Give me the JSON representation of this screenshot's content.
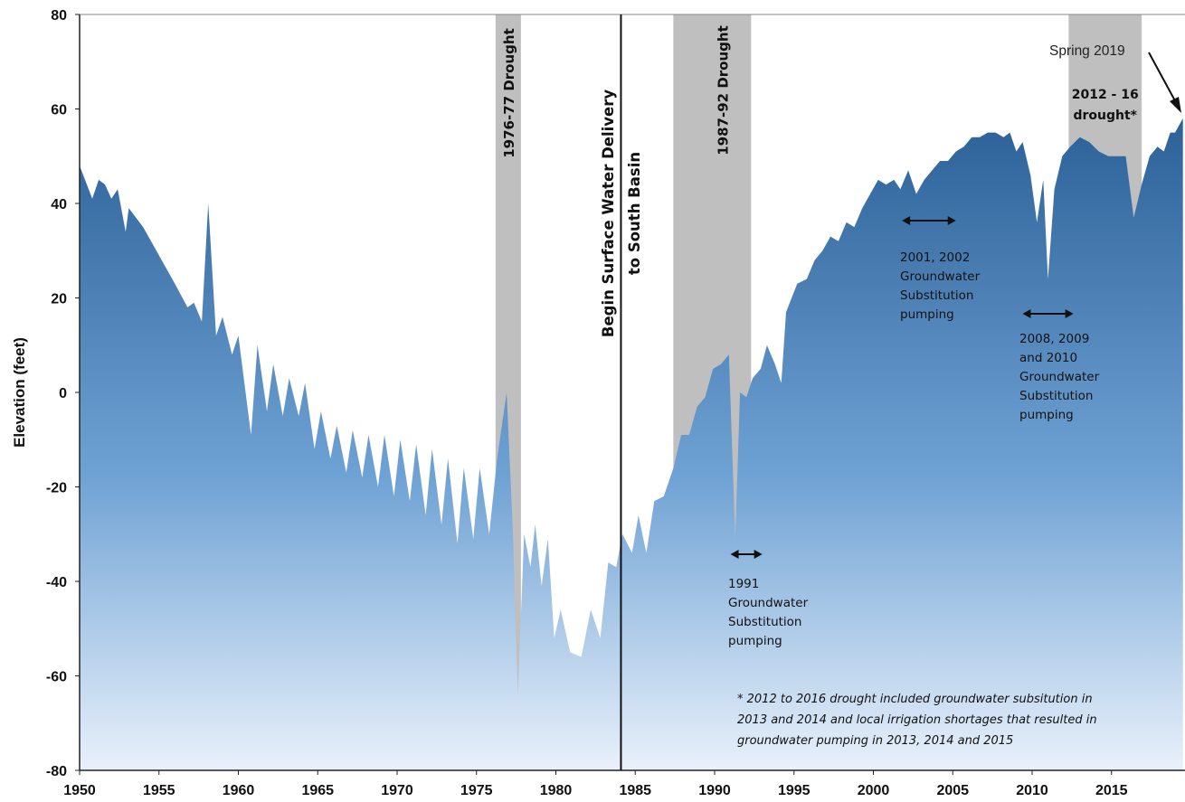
{
  "chart_data": {
    "type": "area",
    "title": "",
    "xlabel": "",
    "ylabel": "Elevation  (feet)",
    "xlim": [
      1950,
      2019
    ],
    "ylim": [
      -80,
      80
    ],
    "x_ticks": [
      "1950",
      "1955",
      "1960",
      "1965",
      "1970",
      "1975",
      "1980",
      "1985",
      "1990",
      "1995",
      "2000",
      "2005",
      "2010",
      "2015"
    ],
    "y_ticks": [
      "80",
      "60",
      "40",
      "20",
      "0",
      "-20",
      "-40",
      "-60",
      "-80"
    ],
    "grid": false,
    "legend": "none",
    "series": [
      {
        "values": [
          {
            "x": 1950.0,
            "y": 48
          },
          {
            "x": 1950.8,
            "y": 41
          },
          {
            "x": 1951.2,
            "y": 45
          },
          {
            "x": 1951.6,
            "y": 44
          },
          {
            "x": 1952.0,
            "y": 41
          },
          {
            "x": 1952.4,
            "y": 43
          },
          {
            "x": 1952.9,
            "y": 34
          },
          {
            "x": 1953.1,
            "y": 39
          },
          {
            "x": 1954.0,
            "y": 35
          },
          {
            "x": 1955.0,
            "y": 29
          },
          {
            "x": 1956.0,
            "y": 23
          },
          {
            "x": 1956.8,
            "y": 18
          },
          {
            "x": 1957.2,
            "y": 19
          },
          {
            "x": 1957.7,
            "y": 15
          },
          {
            "x": 1958.1,
            "y": 40
          },
          {
            "x": 1958.6,
            "y": 12
          },
          {
            "x": 1959.0,
            "y": 16
          },
          {
            "x": 1959.6,
            "y": 8
          },
          {
            "x": 1960.0,
            "y": 12
          },
          {
            "x": 1960.8,
            "y": -9
          },
          {
            "x": 1961.2,
            "y": 10
          },
          {
            "x": 1961.8,
            "y": -4
          },
          {
            "x": 1962.2,
            "y": 6
          },
          {
            "x": 1962.8,
            "y": -5
          },
          {
            "x": 1963.2,
            "y": 3
          },
          {
            "x": 1963.8,
            "y": -5
          },
          {
            "x": 1964.2,
            "y": 2
          },
          {
            "x": 1964.8,
            "y": -12
          },
          {
            "x": 1965.2,
            "y": -4
          },
          {
            "x": 1965.8,
            "y": -14
          },
          {
            "x": 1966.2,
            "y": -7
          },
          {
            "x": 1966.8,
            "y": -17
          },
          {
            "x": 1967.2,
            "y": -8
          },
          {
            "x": 1967.8,
            "y": -18
          },
          {
            "x": 1968.2,
            "y": -9
          },
          {
            "x": 1968.8,
            "y": -20
          },
          {
            "x": 1969.2,
            "y": -9
          },
          {
            "x": 1969.8,
            "y": -22
          },
          {
            "x": 1970.2,
            "y": -10
          },
          {
            "x": 1970.8,
            "y": -23
          },
          {
            "x": 1971.2,
            "y": -11
          },
          {
            "x": 1971.8,
            "y": -26
          },
          {
            "x": 1972.2,
            "y": -12
          },
          {
            "x": 1972.8,
            "y": -28
          },
          {
            "x": 1973.2,
            "y": -14
          },
          {
            "x": 1973.8,
            "y": -32
          },
          {
            "x": 1974.2,
            "y": -16
          },
          {
            "x": 1974.8,
            "y": -31
          },
          {
            "x": 1975.2,
            "y": -16
          },
          {
            "x": 1975.8,
            "y": -30
          },
          {
            "x": 1976.3,
            "y": -14
          },
          {
            "x": 1976.9,
            "y": 0
          },
          {
            "x": 1977.3,
            "y": -30
          },
          {
            "x": 1977.6,
            "y": -64
          },
          {
            "x": 1978.0,
            "y": -30
          },
          {
            "x": 1978.4,
            "y": -37
          },
          {
            "x": 1978.7,
            "y": -28
          },
          {
            "x": 1979.1,
            "y": -41
          },
          {
            "x": 1979.5,
            "y": -31
          },
          {
            "x": 1979.9,
            "y": -52
          },
          {
            "x": 1980.3,
            "y": -46
          },
          {
            "x": 1980.9,
            "y": -55
          },
          {
            "x": 1981.6,
            "y": -56
          },
          {
            "x": 1982.2,
            "y": -46
          },
          {
            "x": 1982.8,
            "y": -52
          },
          {
            "x": 1983.3,
            "y": -36
          },
          {
            "x": 1983.8,
            "y": -37
          },
          {
            "x": 1984.2,
            "y": -30
          },
          {
            "x": 1984.8,
            "y": -34
          },
          {
            "x": 1985.2,
            "y": -26
          },
          {
            "x": 1985.7,
            "y": -34
          },
          {
            "x": 1986.2,
            "y": -23
          },
          {
            "x": 1986.8,
            "y": -22
          },
          {
            "x": 1987.4,
            "y": -16
          },
          {
            "x": 1987.9,
            "y": -9
          },
          {
            "x": 1988.4,
            "y": -9
          },
          {
            "x": 1988.9,
            "y": -3
          },
          {
            "x": 1989.4,
            "y": -1
          },
          {
            "x": 1989.9,
            "y": 5
          },
          {
            "x": 1990.4,
            "y": 6
          },
          {
            "x": 1990.9,
            "y": 8
          },
          {
            "x": 1991.3,
            "y": -31
          },
          {
            "x": 1991.6,
            "y": 0
          },
          {
            "x": 1992.0,
            "y": -1
          },
          {
            "x": 1992.4,
            "y": 3
          },
          {
            "x": 1992.9,
            "y": 5
          },
          {
            "x": 1993.3,
            "y": 10
          },
          {
            "x": 1993.8,
            "y": 6
          },
          {
            "x": 1994.2,
            "y": 2
          },
          {
            "x": 1994.5,
            "y": 17
          },
          {
            "x": 1995.2,
            "y": 23
          },
          {
            "x": 1995.8,
            "y": 24
          },
          {
            "x": 1996.3,
            "y": 28
          },
          {
            "x": 1996.8,
            "y": 30
          },
          {
            "x": 1997.3,
            "y": 33
          },
          {
            "x": 1997.8,
            "y": 32
          },
          {
            "x": 1998.3,
            "y": 36
          },
          {
            "x": 1998.8,
            "y": 35
          },
          {
            "x": 1999.3,
            "y": 39
          },
          {
            "x": 1999.8,
            "y": 42
          },
          {
            "x": 2000.3,
            "y": 45
          },
          {
            "x": 2000.8,
            "y": 44
          },
          {
            "x": 2001.3,
            "y": 45
          },
          {
            "x": 2001.7,
            "y": 43
          },
          {
            "x": 2002.2,
            "y": 47
          },
          {
            "x": 2002.7,
            "y": 42
          },
          {
            "x": 2003.2,
            "y": 45
          },
          {
            "x": 2003.7,
            "y": 47
          },
          {
            "x": 2004.2,
            "y": 49
          },
          {
            "x": 2004.7,
            "y": 49
          },
          {
            "x": 2005.2,
            "y": 51
          },
          {
            "x": 2005.7,
            "y": 52
          },
          {
            "x": 2006.2,
            "y": 54
          },
          {
            "x": 2006.7,
            "y": 54
          },
          {
            "x": 2007.2,
            "y": 55
          },
          {
            "x": 2007.7,
            "y": 55
          },
          {
            "x": 2008.2,
            "y": 54
          },
          {
            "x": 2008.6,
            "y": 55
          },
          {
            "x": 2009.0,
            "y": 51
          },
          {
            "x": 2009.4,
            "y": 53
          },
          {
            "x": 2009.9,
            "y": 46
          },
          {
            "x": 2010.3,
            "y": 36
          },
          {
            "x": 2010.7,
            "y": 45
          },
          {
            "x": 2011.0,
            "y": 24
          },
          {
            "x": 2011.4,
            "y": 43
          },
          {
            "x": 2011.9,
            "y": 50
          },
          {
            "x": 2012.4,
            "y": 52
          },
          {
            "x": 2013.0,
            "y": 54
          },
          {
            "x": 2013.6,
            "y": 53
          },
          {
            "x": 2014.2,
            "y": 51
          },
          {
            "x": 2014.8,
            "y": 50
          },
          {
            "x": 2015.4,
            "y": 50
          },
          {
            "x": 2015.9,
            "y": 50
          },
          {
            "x": 2016.4,
            "y": 37
          },
          {
            "x": 2016.9,
            "y": 44
          },
          {
            "x": 2017.4,
            "y": 50
          },
          {
            "x": 2017.9,
            "y": 52
          },
          {
            "x": 2018.3,
            "y": 51
          },
          {
            "x": 2018.7,
            "y": 55
          },
          {
            "x": 2019.0,
            "y": 55
          },
          {
            "x": 2019.5,
            "y": 58
          }
        ]
      }
    ],
    "bands": [
      {
        "label": "1976-77 Drought",
        "x0": 1976.2,
        "x1": 1977.8
      },
      {
        "label": "1987-92 Drought",
        "x0": 1987.4,
        "x1": 1992.3
      },
      {
        "label": "2012 - 16 drought*",
        "x0": 2012.3,
        "x1": 2016.9
      }
    ],
    "vertical_line": {
      "x": 1984.1,
      "label_line1": "Begin Surface Water Delivery",
      "label_line2": "to South Basin"
    },
    "annotations": [
      {
        "lines": [
          "1991",
          "Groundwater",
          "Substitution",
          "pumping"
        ],
        "arrow_x": [
          1991.0,
          1993.0
        ]
      },
      {
        "lines": [
          "2001,  2002",
          "Groundwater",
          "Substitution",
          "pumping"
        ],
        "arrow_x": [
          2001.8,
          2005.2
        ]
      },
      {
        "lines": [
          "2008,  2009",
          "and 2010",
          "Groundwater",
          "Substitution",
          "pumping"
        ],
        "arrow_x": [
          2009.4,
          2012.6
        ]
      }
    ],
    "spring_label": "Spring 2019",
    "footnote": [
      "* 2012  to 2016  drought included groundwater subsitution in",
      "2013  and 2014  and local irrigation shortages that resulted in",
      "groundwater pumping in 2013, 2014  and 2015"
    ],
    "colors": {
      "fill_top": "#2c6198",
      "fill_mid": "#6fa2d4",
      "fill_bottom": "#e9f1fb",
      "band": "#bfbfbf"
    }
  }
}
